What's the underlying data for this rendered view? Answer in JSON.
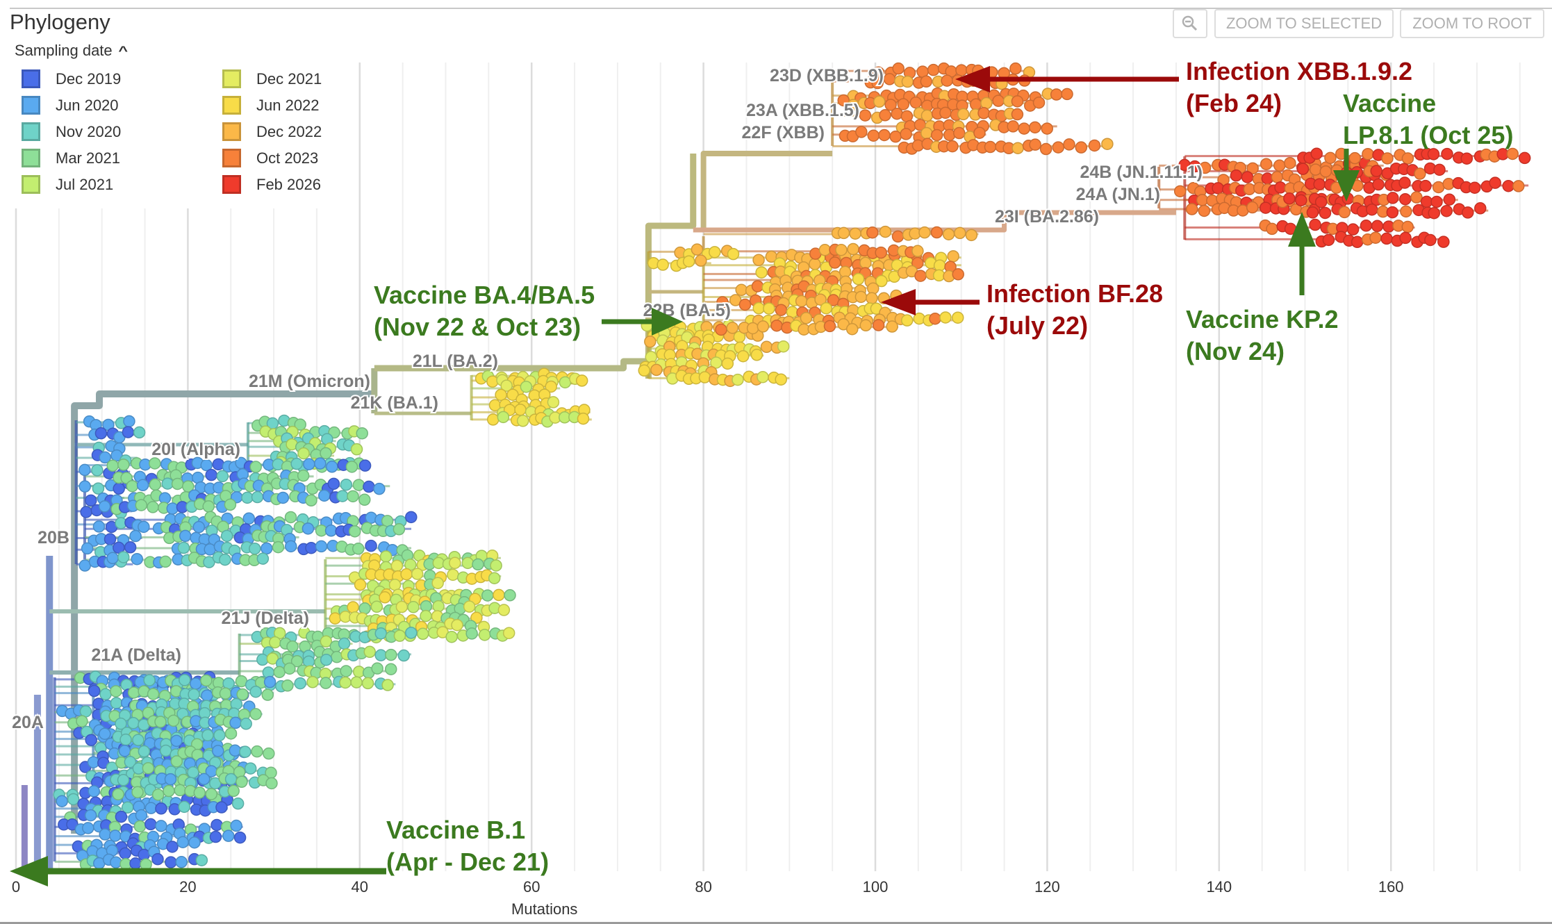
{
  "header": {
    "title": "Phylogeny",
    "legend_title": "Sampling date",
    "legend_toggle_icon": "chevron-up-icon",
    "buttons": {
      "zoom_icon": "zoom-out-magnifier-icon",
      "zoom_to_selected": "ZOOM TO SELECTED",
      "zoom_to_root": "ZOOM TO ROOT"
    }
  },
  "legend": {
    "items": [
      {
        "label": "Dec 2019",
        "color": "#4a6ee8"
      },
      {
        "label": "Jun 2020",
        "color": "#5aaaf0"
      },
      {
        "label": "Nov 2020",
        "color": "#6fd3c8"
      },
      {
        "label": "Mar 2021",
        "color": "#8edf98"
      },
      {
        "label": "Jul 2021",
        "color": "#c3ee70"
      },
      {
        "label": "Dec 2021",
        "color": "#e4ec62"
      },
      {
        "label": "Jun 2022",
        "color": "#f8dc48"
      },
      {
        "label": "Dec 2022",
        "color": "#fbb848"
      },
      {
        "label": "Oct 2023",
        "color": "#f7813a"
      },
      {
        "label": "Feb 2026",
        "color": "#ef3b2c"
      }
    ]
  },
  "chart_data": {
    "type": "phylogeny-tree",
    "xlabel": "Mutations",
    "xlim": [
      0,
      176
    ],
    "x_ticks": [
      0,
      20,
      40,
      60,
      80,
      100,
      120,
      140,
      160
    ],
    "grid": true,
    "color_by": "Sampling date",
    "legend_placement": "top-left",
    "clade_labels": [
      "23D (XBB.1.9)",
      "23A (XBB.1.5)",
      "22F (XBB)",
      "24B (JN.1.11.1)",
      "24A (JN.1)",
      "23I (BA.2.86)",
      "22B (BA.5)",
      "21L (BA.2)",
      "21M (Omicron)",
      "21K (BA.1)",
      "20I (Alpha)",
      "21J (Delta)",
      "21A (Delta)",
      "20B",
      "20A"
    ],
    "annotations": {
      "infection_xbb": {
        "line1": "Infection XBB.1.9.2",
        "line2": "(Feb 24)",
        "color": "#9b0a0a"
      },
      "vaccine_lp81": {
        "line1": "Vaccine",
        "line2": "LP.8.1 (Oct 25)",
        "color": "#3b7a1f"
      },
      "infection_bf28": {
        "line1": "Infection BF.28",
        "line2": "(July 22)",
        "color": "#9b0a0a"
      },
      "vaccine_ba45": {
        "line1": "Vaccine BA.4/BA.5",
        "line2": "(Nov 22 & Oct 23)",
        "color": "#3b7a1f"
      },
      "vaccine_kp2": {
        "line1": "Vaccine KP.2",
        "line2": "(Nov 24)",
        "color": "#3b7a1f"
      },
      "vaccine_b1": {
        "line1": "Vaccine B.1",
        "line2": "(Apr - Dec 21)",
        "color": "#3b7a1f"
      }
    }
  }
}
